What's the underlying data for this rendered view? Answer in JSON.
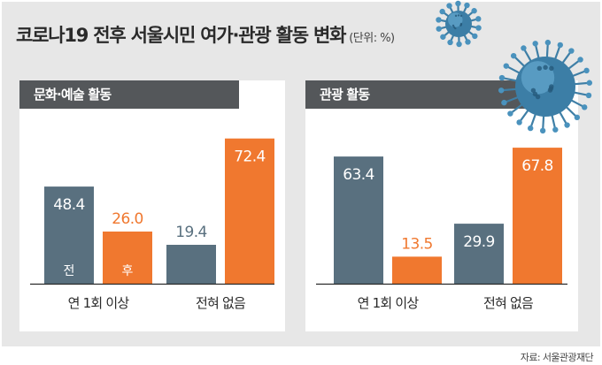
{
  "title": "코로나19 전후 서울시민 여가·관광 활동 변화",
  "unit": "(단위: %)",
  "source": "자료: 서울관광재단",
  "colors": {
    "before": "#59707f",
    "after": "#f0782f",
    "header_bg": "#54575a",
    "background": "#e7e7e7"
  },
  "chart_data": [
    {
      "type": "bar",
      "title": "문화·예술 활동",
      "categories": [
        "연 1회 이상",
        "전혀 없음"
      ],
      "series": [
        {
          "name": "전",
          "values": [
            48.4,
            19.4
          ]
        },
        {
          "name": "후",
          "values": [
            26.0,
            72.4
          ]
        }
      ],
      "ylim": [
        0,
        100
      ],
      "grid": false
    },
    {
      "type": "bar",
      "title": "관광 활동",
      "categories": [
        "연 1회 이상",
        "전혀 없음"
      ],
      "series": [
        {
          "name": "",
          "values": [
            63.4,
            29.9
          ]
        },
        {
          "name": "",
          "values": [
            13.5,
            67.8
          ]
        }
      ],
      "ylim": [
        0,
        100
      ],
      "grid": false
    }
  ]
}
